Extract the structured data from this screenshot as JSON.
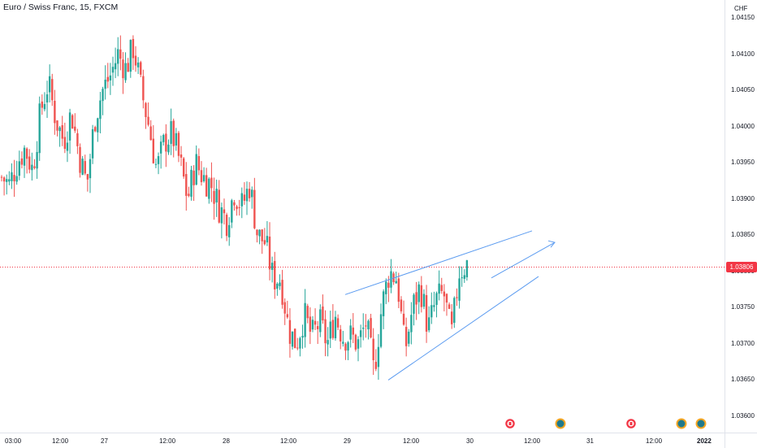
{
  "title": "Euro / Swiss Franc, 15, FXCM",
  "currency": "CHF",
  "last_price": "1.03806",
  "colors": {
    "up": "#26a69a",
    "down": "#ef5350",
    "trendline": "#5b9bf0",
    "last_line": "#f23645"
  },
  "event_icons": [
    "flag-icon",
    "globe-icon",
    "flag-icon",
    "globe-icon",
    "globe-icon"
  ],
  "chart_data": {
    "type": "candlestick",
    "title": "Euro / Swiss Franc, 15, FXCM",
    "y_ticks": [
      "1.04150",
      "1.04100",
      "1.04050",
      "1.04000",
      "1.03950",
      "1.03900",
      "1.03850",
      "1.03800",
      "1.03750",
      "1.03700",
      "1.03650",
      "1.03600"
    ],
    "x_ticks": [
      "03:00",
      "12:00",
      "27",
      "12:00",
      "28",
      "12:00",
      "29",
      "12:00",
      "30",
      "12:00",
      "31",
      "12:00",
      "2022"
    ],
    "ylim": [
      1.0359,
      1.0415
    ],
    "series": [
      {
        "name": "EURCHF",
        "close_path": [
          1.0393,
          1.0392,
          1.0395,
          1.0397,
          1.0394,
          1.0402,
          1.0406,
          1.0401,
          1.0398,
          1.0402,
          1.0396,
          1.0392,
          1.0401,
          1.0405,
          1.0407,
          1.041,
          1.0408,
          1.0411,
          1.0405,
          1.04,
          1.0394,
          1.0398,
          1.0399,
          1.0395,
          1.039,
          1.0395,
          1.0393,
          1.0392,
          1.0389,
          1.0387,
          1.0391,
          1.0389,
          1.0392,
          1.0385,
          1.0384,
          1.0379,
          1.0379,
          1.0372,
          1.037,
          1.0374,
          1.0371,
          1.0373,
          1.037,
          1.0374,
          1.0371,
          1.0371,
          1.037,
          1.0373,
          1.0366,
          1.0375,
          1.038,
          1.0379,
          1.0369,
          1.0375,
          1.0378,
          1.0372,
          1.0376,
          1.0377,
          1.0371,
          1.038,
          1.0381
        ]
      }
    ],
    "x_range": [
      0,
      580
    ],
    "annotations": {
      "upper_trendline": [
        [
          425,
          1.03768
        ],
        [
          655,
          1.03856
        ]
      ],
      "lower_trendline": [
        [
          478,
          1.0365
        ],
        [
          663,
          1.03793
        ]
      ],
      "arrow": [
        [
          605,
          1.03791
        ],
        [
          683,
          1.0384
        ]
      ],
      "last_price_line": 1.03806
    }
  }
}
